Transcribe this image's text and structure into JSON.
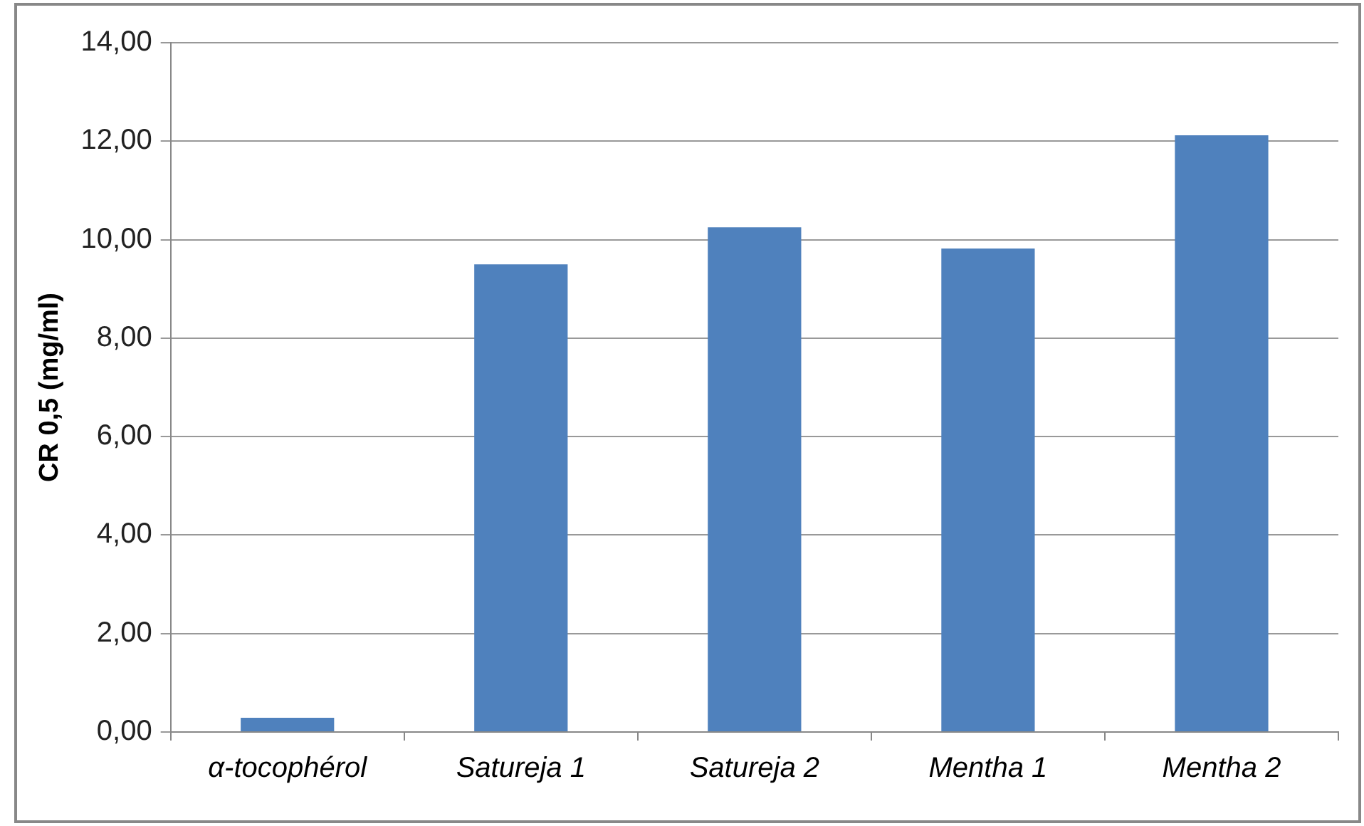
{
  "chart_data": {
    "type": "bar",
    "ylabel": "CR 0,5 (mg/ml)",
    "categories": [
      "α-tocophérol",
      "Satureja 1",
      "Satureja 2",
      "Mentha 1",
      "Mentha 2"
    ],
    "values": [
      0.29,
      9.5,
      10.25,
      9.82,
      12.12
    ],
    "color": "#4f81bd",
    "ylim": [
      0,
      14
    ],
    "yticks": [
      {
        "value": 0,
        "label": "0,00"
      },
      {
        "value": 2,
        "label": "2,00"
      },
      {
        "value": 4,
        "label": "4,00"
      },
      {
        "value": 6,
        "label": "6,00"
      },
      {
        "value": 8,
        "label": "8,00"
      },
      {
        "value": 10,
        "label": "10,00"
      },
      {
        "value": 12,
        "label": "12,00"
      },
      {
        "value": 14,
        "label": "14,00"
      }
    ],
    "grid": "y"
  }
}
